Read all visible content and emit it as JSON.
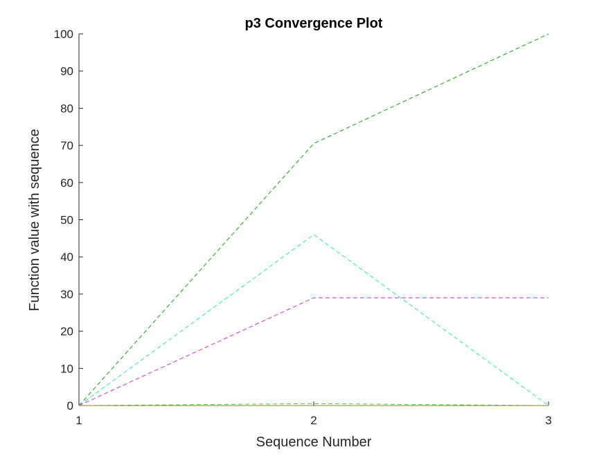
{
  "chart_data": {
    "type": "line",
    "title": "p3 Convergence Plot",
    "xlabel": "Sequence Number",
    "ylabel": "Function value with sequence",
    "x": [
      1,
      2,
      3
    ],
    "xlim": [
      1,
      3
    ],
    "ylim": [
      0,
      100
    ],
    "xticks": [
      "1",
      "2",
      "3"
    ],
    "yticks": [
      "0",
      "10",
      "20",
      "30",
      "40",
      "50",
      "60",
      "70",
      "80",
      "90",
      "100"
    ],
    "grid": false,
    "legend": "none",
    "axis_color": "#262626",
    "series": [
      {
        "color": "#1a9a1a",
        "dash": "dashed",
        "values": [
          0,
          70.5,
          100
        ]
      },
      {
        "color": "#33e89a",
        "dash": "dashed",
        "values": [
          0,
          46,
          0
        ]
      },
      {
        "color": "#cc33cc",
        "dash": "dashed",
        "values": [
          0,
          29,
          29
        ]
      },
      {
        "color": "#44cc44",
        "dash": "dashed",
        "values": [
          0,
          0.5,
          0
        ]
      },
      {
        "color": "#8a8a20",
        "dash": "solid",
        "values": [
          0,
          0,
          0
        ]
      }
    ]
  }
}
